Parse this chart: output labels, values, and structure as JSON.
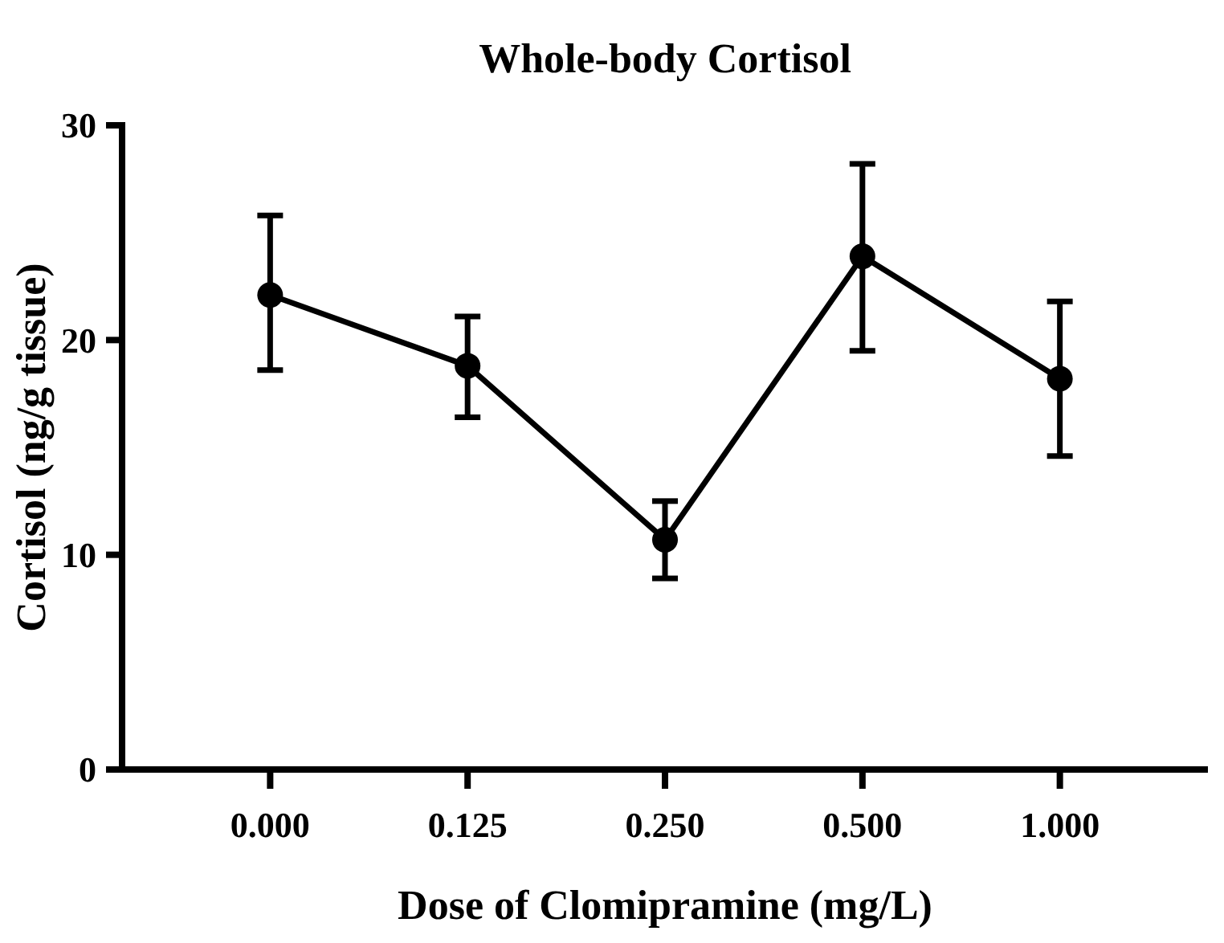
{
  "chart_data": {
    "type": "line",
    "title": "Whole-body Cortisol",
    "xlabel": "Dose of Clomipramine (mg/L)",
    "ylabel": "Cortisol (ng/g tissue)",
    "categories": [
      "0.000",
      "0.125",
      "0.250",
      "0.500",
      "1.000"
    ],
    "values": [
      22.1,
      18.8,
      10.7,
      23.9,
      18.2
    ],
    "errors": [
      [
        18.6,
        25.8
      ],
      [
        16.4,
        21.1
      ],
      [
        8.9,
        12.5
      ],
      [
        19.5,
        28.2
      ],
      [
        14.6,
        21.8
      ]
    ],
    "color": "#000000",
    "marker": "circle",
    "line_style": "solid",
    "grid": false,
    "ylim": [
      0,
      30
    ],
    "yticks": [
      0,
      10,
      20,
      30
    ]
  }
}
